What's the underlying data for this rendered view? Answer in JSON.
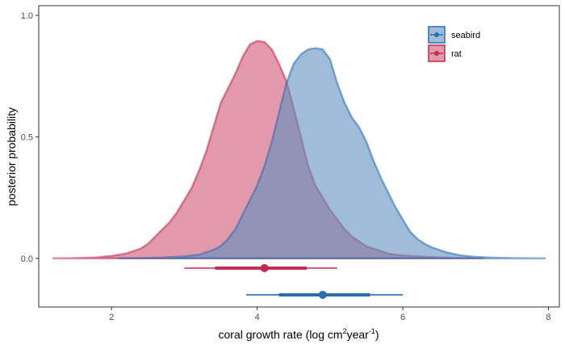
{
  "chart_data": {
    "type": "area",
    "xlabel_parts": [
      "coral growth rate (log cm",
      "2",
      "year",
      "-1",
      ")"
    ],
    "ylabel": "posterior probability",
    "xlim": [
      1.0,
      8.15
    ],
    "ylim": [
      -0.2,
      1.04
    ],
    "x_ticks": [
      2,
      4,
      6,
      8
    ],
    "y_ticks": [
      0.0,
      0.5,
      1.0
    ],
    "y_tick_labels": [
      "0.0",
      "0.5",
      "1.0"
    ],
    "grid": false,
    "legend_position": "top-right",
    "series": [
      {
        "name": "rat",
        "color": "#c5294f",
        "fill": "#cf5573",
        "x": [
          1.2,
          1.4,
          1.6,
          1.8,
          2.0,
          2.2,
          2.4,
          2.5,
          2.6,
          2.7,
          2.8,
          2.9,
          3.0,
          3.1,
          3.2,
          3.3,
          3.4,
          3.5,
          3.6,
          3.7,
          3.8,
          3.9,
          4.0,
          4.1,
          4.2,
          4.3,
          4.4,
          4.5,
          4.6,
          4.7,
          4.8,
          4.9,
          5.0,
          5.1,
          5.2,
          5.3,
          5.4,
          5.5,
          5.6,
          5.7,
          5.8,
          5.9,
          6.0,
          6.2,
          6.4,
          6.6,
          6.8,
          7.1
        ],
        "y": [
          0.0,
          0.0,
          0.002,
          0.004,
          0.01,
          0.02,
          0.04,
          0.06,
          0.09,
          0.12,
          0.15,
          0.19,
          0.24,
          0.29,
          0.36,
          0.44,
          0.54,
          0.64,
          0.7,
          0.76,
          0.83,
          0.88,
          0.895,
          0.89,
          0.86,
          0.8,
          0.73,
          0.62,
          0.5,
          0.38,
          0.3,
          0.25,
          0.2,
          0.16,
          0.12,
          0.09,
          0.07,
          0.05,
          0.04,
          0.03,
          0.02,
          0.015,
          0.012,
          0.008,
          0.005,
          0.003,
          0.001,
          0.0
        ],
        "median": 4.1,
        "interval_inner": [
          3.42,
          4.68
        ],
        "interval_outer": [
          3.0,
          5.1
        ]
      },
      {
        "name": "seabird",
        "color": "#2b6eb0",
        "fill": "#5f8fbf",
        "x": [
          2.1,
          2.4,
          2.7,
          3.0,
          3.2,
          3.4,
          3.5,
          3.6,
          3.7,
          3.8,
          3.9,
          4.0,
          4.1,
          4.2,
          4.3,
          4.4,
          4.5,
          4.6,
          4.7,
          4.8,
          4.9,
          5.0,
          5.1,
          5.2,
          5.3,
          5.4,
          5.5,
          5.6,
          5.7,
          5.8,
          5.9,
          6.0,
          6.1,
          6.2,
          6.3,
          6.4,
          6.5,
          6.6,
          6.7,
          6.8,
          7.0,
          7.2,
          7.5,
          7.8,
          7.95
        ],
        "y": [
          0.0,
          0.001,
          0.003,
          0.008,
          0.015,
          0.035,
          0.05,
          0.08,
          0.12,
          0.18,
          0.24,
          0.3,
          0.38,
          0.48,
          0.6,
          0.72,
          0.8,
          0.84,
          0.86,
          0.865,
          0.86,
          0.82,
          0.72,
          0.64,
          0.58,
          0.54,
          0.48,
          0.4,
          0.33,
          0.27,
          0.21,
          0.16,
          0.11,
          0.08,
          0.06,
          0.045,
          0.035,
          0.025,
          0.018,
          0.012,
          0.006,
          0.003,
          0.001,
          0.0,
          0.0
        ],
        "median": 4.9,
        "interval_inner": [
          4.3,
          5.55
        ],
        "interval_outer": [
          3.85,
          6.0
        ]
      }
    ]
  }
}
